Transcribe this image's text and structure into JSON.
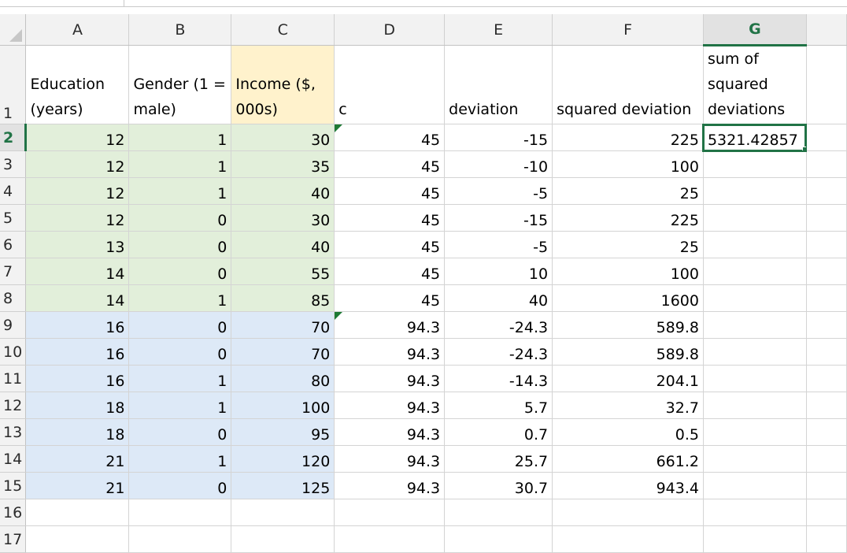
{
  "columns": [
    "A",
    "B",
    "C",
    "D",
    "E",
    "F",
    "G"
  ],
  "active_column": "G",
  "header_row": {
    "row": "1",
    "cells": [
      "Education (years)",
      "Gender (1 = male)",
      "Income ($, 000s)",
      "c",
      "deviation",
      "squared deviation",
      "sum of squared deviations"
    ]
  },
  "rows": [
    {
      "row": "2",
      "cells": [
        "12",
        "1",
        "30",
        "45",
        "-15",
        "225",
        "5321.42857"
      ]
    },
    {
      "row": "3",
      "cells": [
        "12",
        "1",
        "35",
        "45",
        "-10",
        "100",
        ""
      ]
    },
    {
      "row": "4",
      "cells": [
        "12",
        "1",
        "40",
        "45",
        "-5",
        "25",
        ""
      ]
    },
    {
      "row": "5",
      "cells": [
        "12",
        "0",
        "30",
        "45",
        "-15",
        "225",
        ""
      ]
    },
    {
      "row": "6",
      "cells": [
        "13",
        "0",
        "40",
        "45",
        "-5",
        "25",
        ""
      ]
    },
    {
      "row": "7",
      "cells": [
        "14",
        "0",
        "55",
        "45",
        "10",
        "100",
        ""
      ]
    },
    {
      "row": "8",
      "cells": [
        "14",
        "1",
        "85",
        "45",
        "40",
        "1600",
        ""
      ]
    },
    {
      "row": "9",
      "cells": [
        "16",
        "0",
        "70",
        "94.3",
        "-24.3",
        "589.8",
        ""
      ]
    },
    {
      "row": "10",
      "cells": [
        "16",
        "0",
        "70",
        "94.3",
        "-24.3",
        "589.8",
        ""
      ]
    },
    {
      "row": "11",
      "cells": [
        "16",
        "1",
        "80",
        "94.3",
        "-14.3",
        "204.1",
        ""
      ]
    },
    {
      "row": "12",
      "cells": [
        "18",
        "1",
        "100",
        "94.3",
        "5.7",
        "32.7",
        ""
      ]
    },
    {
      "row": "13",
      "cells": [
        "18",
        "0",
        "95",
        "94.3",
        "0.7",
        "0.5",
        ""
      ]
    },
    {
      "row": "14",
      "cells": [
        "21",
        "1",
        "120",
        "94.3",
        "25.7",
        "661.2",
        ""
      ]
    },
    {
      "row": "15",
      "cells": [
        "21",
        "0",
        "125",
        "94.3",
        "30.7",
        "943.4",
        ""
      ]
    }
  ],
  "trailing_rows": [
    "16",
    "17"
  ],
  "selected_cell": "G2",
  "colors": {
    "male_group_fill": "#e2efda",
    "female_group_fill": "#dde9f7",
    "income_header_fill": "#fff2cc",
    "selection": "#217346",
    "comment_flag": "#1e7a35"
  }
}
